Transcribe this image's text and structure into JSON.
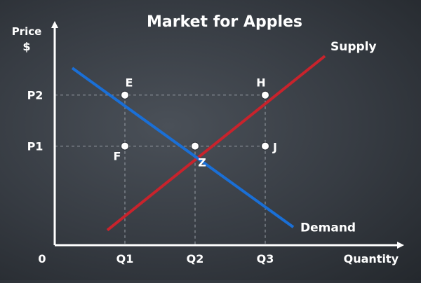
{
  "chart_data": {
    "type": "line",
    "title": "Market for Apples",
    "ylabel": [
      "Price",
      "$"
    ],
    "xlabel": "Quantity",
    "origin_label": "0",
    "x_ticks": [
      "Q1",
      "Q2",
      "Q3"
    ],
    "y_ticks": [
      "P1",
      "P2"
    ],
    "xlim": [
      0,
      4.3
    ],
    "ylim": [
      0,
      3.5
    ],
    "tick_values": {
      "Q1": 1,
      "Q2": 2,
      "Q3": 3,
      "P1": 1.65,
      "P2": 2.5
    },
    "series": [
      {
        "name": "Supply",
        "color": "#c8232c",
        "x": [
          0.75,
          3.85
        ],
        "y": [
          0.25,
          3.15
        ]
      },
      {
        "name": "Demand",
        "color": "#1a6fd6",
        "x": [
          0.25,
          3.4
        ],
        "y": [
          2.95,
          0.3
        ]
      }
    ],
    "points": [
      {
        "label": "E",
        "x": 1,
        "y": 2.5
      },
      {
        "label": "H",
        "x": 3,
        "y": 2.5
      },
      {
        "label": "F",
        "x": 1,
        "y": 1.65
      },
      {
        "label": "Z",
        "x": 2,
        "y": 1.65
      },
      {
        "label": "J",
        "x": 3,
        "y": 1.65
      }
    ],
    "grid": false,
    "guide_lines": "dashed"
  }
}
